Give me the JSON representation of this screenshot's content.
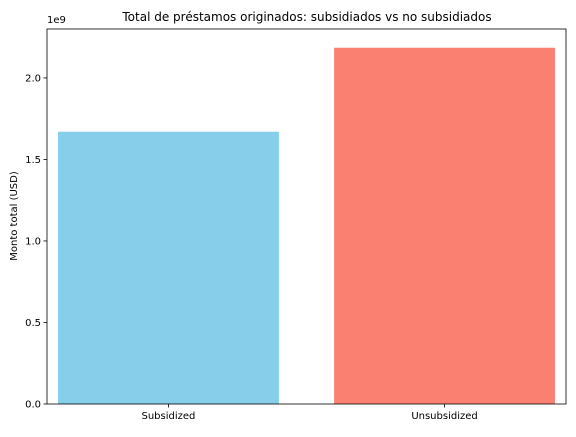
{
  "chart_data": {
    "type": "bar",
    "title": "Total de préstamos originados: subsidiados vs no subsidiados",
    "xlabel": "",
    "ylabel": "Monto total (USD)",
    "offset_label": "1e9",
    "categories": [
      "Subsidized",
      "Unsubsidized"
    ],
    "values": [
      1670000000,
      2185000000
    ],
    "colors": [
      "#87CEEB",
      "#FA8072"
    ],
    "ylim": [
      0,
      2300000000
    ],
    "yticks": [
      0,
      500000000,
      1000000000,
      1500000000,
      2000000000
    ],
    "ytick_labels": [
      "0.0",
      "0.5",
      "1.0",
      "1.5",
      "2.0"
    ],
    "grid": false,
    "legend": "none"
  }
}
